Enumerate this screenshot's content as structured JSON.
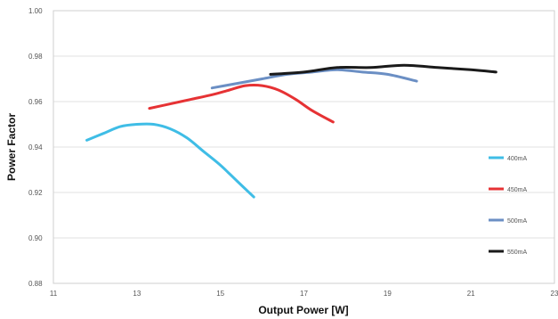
{
  "chart_data": {
    "type": "line",
    "title": "",
    "xlabel": "Output Power [W]",
    "ylabel": "Power Factor",
    "xlim": [
      11,
      23
    ],
    "ylim": [
      0.88,
      1.0
    ],
    "x_ticks": [
      "11",
      "13",
      "15",
      "17",
      "19",
      "21",
      "23"
    ],
    "y_ticks": [
      "0.88",
      "0.90",
      "0.92",
      "0.94",
      "0.96",
      "0.98",
      "1.00"
    ],
    "grid": "horizontal",
    "legend_position": "right",
    "series": [
      {
        "name": "400mA",
        "color": "#3fbde6",
        "points": [
          [
            11.8,
            0.943
          ],
          [
            12.2,
            0.946
          ],
          [
            12.6,
            0.949
          ],
          [
            13.0,
            0.95
          ],
          [
            13.4,
            0.95
          ],
          [
            13.8,
            0.948
          ],
          [
            14.2,
            0.944
          ],
          [
            14.6,
            0.938
          ],
          [
            15.0,
            0.932
          ],
          [
            15.4,
            0.925
          ],
          [
            15.8,
            0.918
          ]
        ]
      },
      {
        "name": "450mA",
        "color": "#e63234",
        "points": [
          [
            13.3,
            0.957
          ],
          [
            13.8,
            0.959
          ],
          [
            14.3,
            0.961
          ],
          [
            14.8,
            0.963
          ],
          [
            15.2,
            0.965
          ],
          [
            15.6,
            0.967
          ],
          [
            16.0,
            0.967
          ],
          [
            16.4,
            0.965
          ],
          [
            16.8,
            0.961
          ],
          [
            17.2,
            0.956
          ],
          [
            17.7,
            0.951
          ]
        ]
      },
      {
        "name": "500mA",
        "color": "#6b8fc4",
        "points": [
          [
            14.8,
            0.966
          ],
          [
            15.4,
            0.968
          ],
          [
            16.0,
            0.97
          ],
          [
            16.6,
            0.972
          ],
          [
            17.2,
            0.973
          ],
          [
            17.8,
            0.974
          ],
          [
            18.4,
            0.973
          ],
          [
            19.0,
            0.972
          ],
          [
            19.7,
            0.969
          ]
        ]
      },
      {
        "name": "550mA",
        "color": "#1a1a1a",
        "points": [
          [
            16.2,
            0.972
          ],
          [
            17.0,
            0.973
          ],
          [
            17.8,
            0.975
          ],
          [
            18.6,
            0.975
          ],
          [
            19.4,
            0.976
          ],
          [
            20.2,
            0.975
          ],
          [
            21.0,
            0.974
          ],
          [
            21.6,
            0.973
          ]
        ]
      }
    ]
  }
}
